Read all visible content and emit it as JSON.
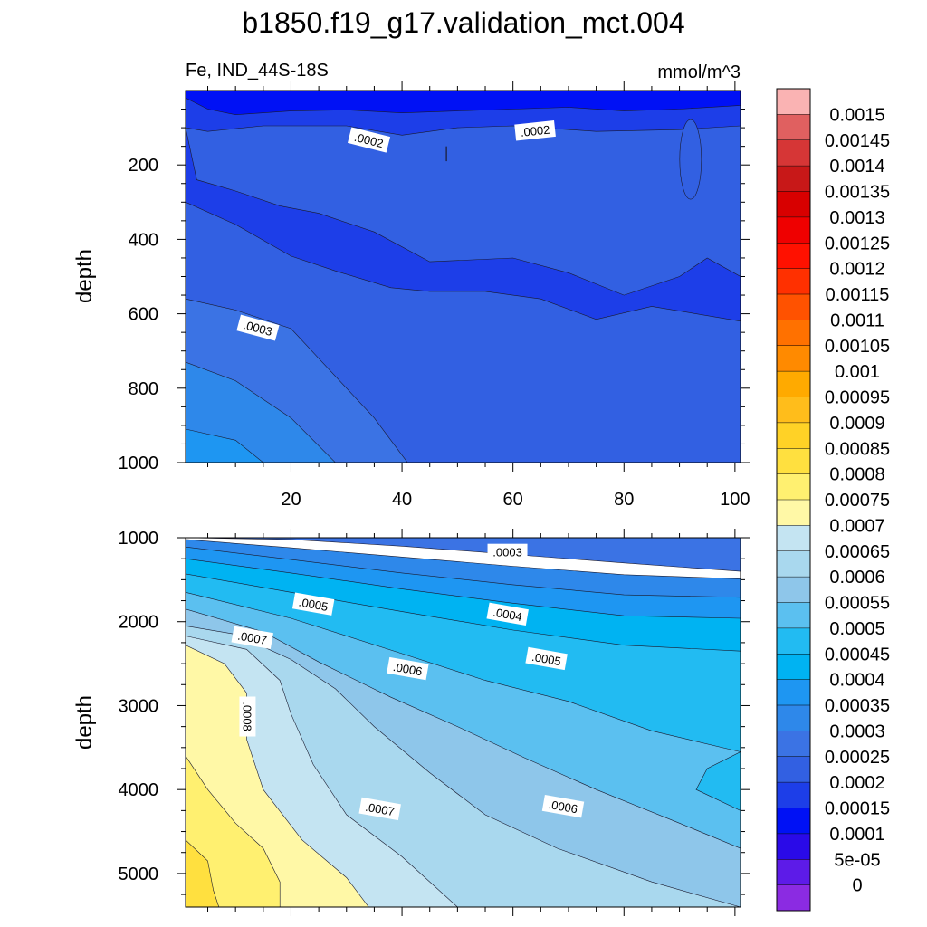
{
  "title": "b1850.f19_g17.validation_mct.004",
  "chart_data": [
    {
      "type": "heatmap",
      "panel": "upper",
      "left_label": "Fe, IND_44S-18S",
      "right_label": "mmol/m^3",
      "ylabel": "depth",
      "xlabel": "",
      "y_reversed": true,
      "xlim": [
        1,
        101
      ],
      "ylim": [
        0,
        1000
      ],
      "x_ticks": [
        20,
        40,
        60,
        80,
        100
      ],
      "y_ticks": [
        200,
        400,
        600,
        800,
        1000
      ],
      "contour_labels": [
        {
          "text": ".0002",
          "x": 34,
          "y": 135
        },
        {
          "text": ".0002",
          "x": 64,
          "y": 110
        },
        {
          "text": ".0003",
          "x": 14,
          "y": 640
        }
      ],
      "boundaries": [
        {
          "level": 0.0002,
          "points": [
            [
              1,
              20
            ],
            [
              5,
              50
            ],
            [
              10,
              65
            ],
            [
              20,
              55
            ],
            [
              30,
              52
            ],
            [
              40,
              60
            ],
            [
              50,
              55
            ],
            [
              60,
              50
            ],
            [
              70,
              45
            ],
            [
              80,
              55
            ],
            [
              90,
              50
            ],
            [
              101,
              40
            ]
          ]
        },
        {
          "level": 0.00015,
          "points": [
            [
              1,
              100
            ],
            [
              5,
              110
            ],
            [
              15,
              95
            ],
            [
              30,
              95
            ],
            [
              40,
              120
            ],
            [
              50,
              100
            ],
            [
              60,
              95
            ],
            [
              75,
              110
            ],
            [
              90,
              105
            ],
            [
              101,
              95
            ]
          ]
        },
        {
          "level": 0.00025,
          "points": [
            [
              1,
              100
            ],
            [
              3,
              240
            ],
            [
              10,
              270
            ],
            [
              18,
              310
            ],
            [
              25,
              330
            ],
            [
              35,
              380
            ],
            [
              45,
              460
            ],
            [
              60,
              450
            ],
            [
              70,
              490
            ],
            [
              80,
              550
            ],
            [
              90,
              500
            ],
            [
              95,
              450
            ],
            [
              101,
              500
            ],
            [
              101,
              620
            ],
            [
              85,
              580
            ],
            [
              75,
              615
            ],
            [
              65,
              560
            ],
            [
              55,
              540
            ],
            [
              45,
              540
            ],
            [
              38,
              530
            ],
            [
              28,
              485
            ],
            [
              20,
              445
            ],
            [
              10,
              360
            ],
            [
              1,
              300
            ]
          ]
        },
        {
          "level": 0.0003,
          "points": [
            [
              1,
              560
            ],
            [
              10,
              590
            ],
            [
              20,
              640
            ],
            [
              25,
              720
            ],
            [
              30,
              800
            ],
            [
              35,
              880
            ],
            [
              41,
              1000
            ]
          ]
        },
        {
          "level": 0.00035,
          "points": [
            [
              1,
              730
            ],
            [
              10,
              780
            ],
            [
              20,
              880
            ],
            [
              28,
              1000
            ]
          ]
        },
        {
          "level": 0.0004,
          "points": [
            [
              1,
              910
            ],
            [
              10,
              940
            ],
            [
              15,
              1000
            ]
          ]
        }
      ]
    },
    {
      "type": "heatmap",
      "panel": "lower",
      "ylabel": "depth",
      "xlabel": "",
      "y_reversed": true,
      "xlim": [
        1,
        101
      ],
      "ylim": [
        1000,
        5400
      ],
      "y_ticks": [
        1000,
        2000,
        3000,
        4000,
        5000
      ],
      "contour_labels": [
        {
          "text": ".0003",
          "x": 59,
          "y": 1180
        },
        {
          "text": ".0005",
          "x": 24,
          "y": 1800
        },
        {
          "text": ".0004",
          "x": 59,
          "y": 1920
        },
        {
          "text": ".0007",
          "x": 13,
          "y": 2200
        },
        {
          "text": ".0006",
          "x": 41,
          "y": 2570
        },
        {
          "text": ".0005",
          "x": 66,
          "y": 2450
        },
        {
          "text": ".0008",
          "x": 12,
          "y": 3130
        },
        {
          "text": ".0007",
          "x": 36,
          "y": 4240
        },
        {
          "text": ".0006",
          "x": 69,
          "y": 4210
        }
      ]
    }
  ],
  "colorbar": {
    "labels": [
      "0",
      "5e-05",
      "0.0001",
      "0.00015",
      "0.0002",
      "0.00025",
      "0.0003",
      "0.00035",
      "0.0004",
      "0.00045",
      "0.0005",
      "0.00055",
      "0.0006",
      "0.00065",
      "0.0007",
      "0.00075",
      "0.0008",
      "0.00085",
      "0.0009",
      "0.00095",
      "0.001",
      "0.00105",
      "0.0011",
      "0.00115",
      "0.0012",
      "0.00125",
      "0.0013",
      "0.00135",
      "0.0014",
      "0.00145",
      "0.0015"
    ],
    "colors": [
      "#8b2be2",
      "#5d1be8",
      "#2a0ae8",
      "#0011f5",
      "#1d3ee8",
      "#3260e2",
      "#3b73e4",
      "#2e88ea",
      "#1e96f2",
      "#00b3f2",
      "#22bbf2",
      "#5bc0f0",
      "#8ec6ea",
      "#a9d8ee",
      "#c4e4f2",
      "#fff8a6",
      "#fff070",
      "#ffe03f",
      "#ffd226",
      "#ffbd1b",
      "#ffaa00",
      "#ff8a00",
      "#ff7100",
      "#ff5200",
      "#ff3000",
      "#ff1100",
      "#ef0000",
      "#d80000",
      "#c81818",
      "#d63636",
      "#e06060",
      "#fab3b3"
    ]
  }
}
